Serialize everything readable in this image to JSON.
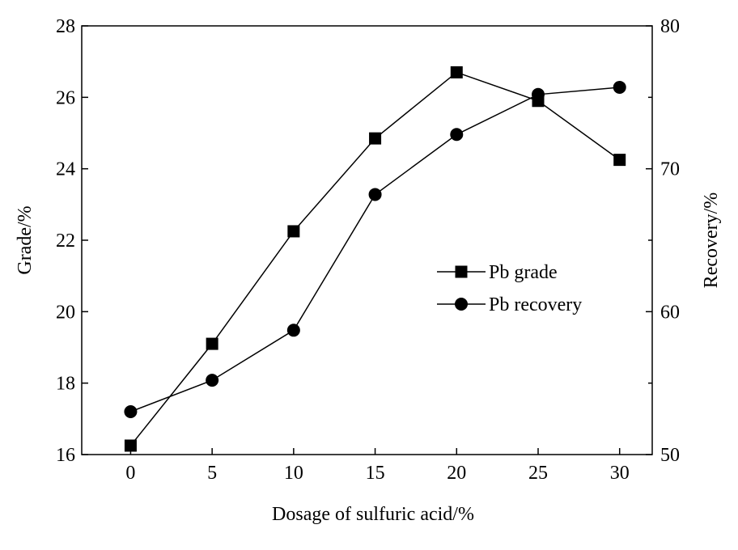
{
  "chart_data": {
    "type": "line",
    "xlabel": "Dosage of sulfuric acid/%",
    "ylabel_left": "Grade/%",
    "ylabel_right": "Recovery/%",
    "x": [
      0,
      5,
      10,
      15,
      20,
      25,
      30
    ],
    "xlim": [
      -3,
      32
    ],
    "xticks": [
      "0",
      "5",
      "10",
      "15",
      "20",
      "25",
      "30"
    ],
    "ylim_left": [
      16,
      28
    ],
    "yticks_left": [
      "16",
      "18",
      "20",
      "22",
      "24",
      "26",
      "28"
    ],
    "ylim_right": [
      50,
      80
    ],
    "yticks_right": [
      "50",
      "60",
      "70",
      "80"
    ],
    "grid": false,
    "legend_position": "center-right",
    "series": [
      {
        "name": "Pb grade",
        "marker": "square",
        "axis": "left",
        "values": [
          16.25,
          19.1,
          22.25,
          24.85,
          26.7,
          25.9,
          24.25
        ]
      },
      {
        "name": "Pb recovery",
        "marker": "circle",
        "axis": "right",
        "values": [
          53.0,
          55.2,
          58.7,
          68.2,
          72.4,
          75.2,
          75.7
        ]
      }
    ],
    "colors": {
      "line": "#000000",
      "marker": "#000000"
    }
  }
}
